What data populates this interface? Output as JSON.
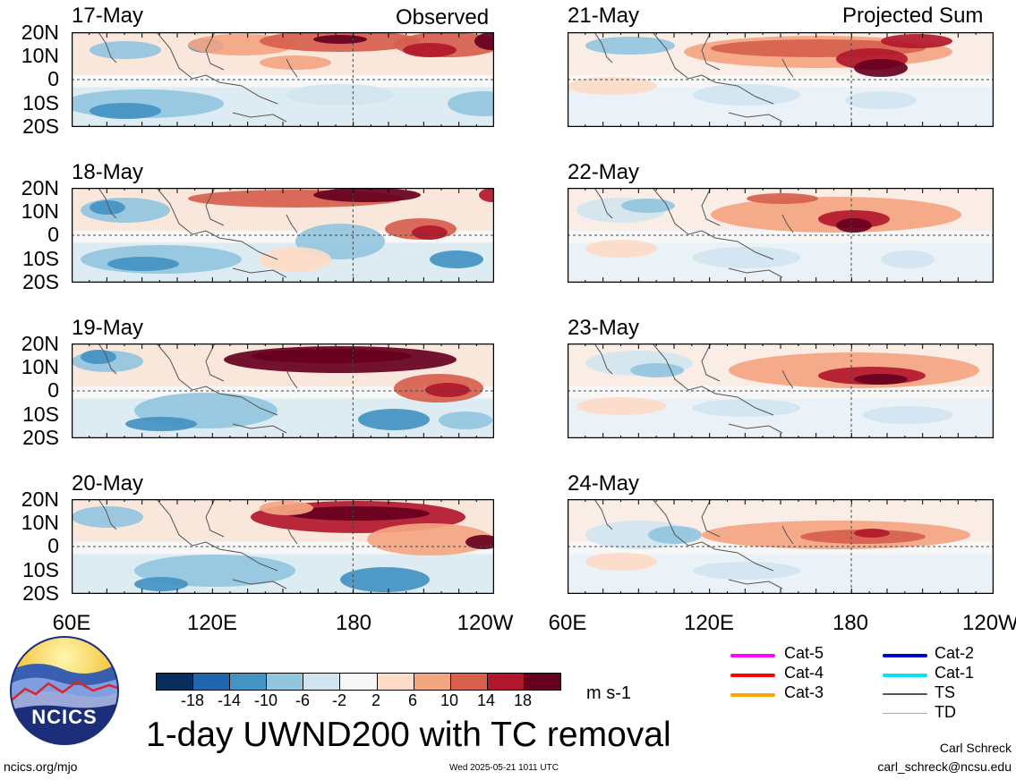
{
  "title": "1-day UWND200 with TC removal",
  "units": "m s-1",
  "columns": {
    "left_header": "Observed",
    "right_header": "Projected Sum"
  },
  "panels_left": [
    "17-May",
    "18-May",
    "19-May",
    "20-May"
  ],
  "panels_right": [
    "21-May",
    "22-May",
    "23-May",
    "24-May"
  ],
  "y_ticks": [
    "20N",
    "10N",
    "0",
    "10S",
    "20S"
  ],
  "x_ticks_left": [
    "60E",
    "120E",
    "180",
    "120W"
  ],
  "x_ticks_right": [
    "60E",
    "120E",
    "180",
    "120W"
  ],
  "colorbar": {
    "labels": [
      "-18",
      "-14",
      "-10",
      "-6",
      "-2",
      "2",
      "6",
      "10",
      "14",
      "18"
    ],
    "colors": [
      "#0a2e5c",
      "#2166ac",
      "#4393c3",
      "#92c5de",
      "#d1e5f0",
      "#f7f7f7",
      "#fddbc7",
      "#f4a582",
      "#d6604d",
      "#b2182b",
      "#67001f"
    ]
  },
  "legend": [
    {
      "label": "Cat-5",
      "color": "#ff00ff"
    },
    {
      "label": "Cat-4",
      "color": "#ff0000"
    },
    {
      "label": "Cat-3",
      "color": "#ffa500"
    },
    {
      "label": "Cat-2",
      "color": "#0000cc"
    },
    {
      "label": "Cat-1",
      "color": "#00e5ee"
    },
    {
      "label": "TS",
      "color": "#555555"
    },
    {
      "label": "TD",
      "color": "#aaaaaa"
    }
  ],
  "logo": {
    "text": "NCICS"
  },
  "footer": {
    "url": "ncics.org/mjo",
    "timestamp": "Wed 2025-05-21 1011 UTC",
    "author": "Carl Schreck",
    "email": "carl_schreck@ncsu.edu"
  }
}
